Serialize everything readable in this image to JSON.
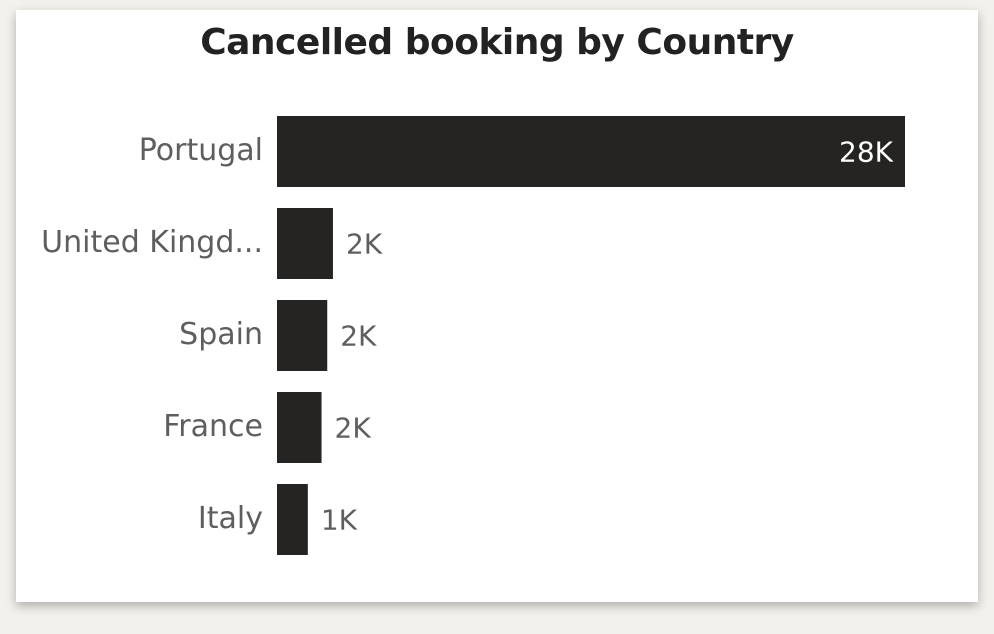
{
  "chart_data": {
    "type": "bar",
    "orientation": "horizontal",
    "title": "Cancelled booking by Country",
    "categories": [
      "Portugal",
      "United Kingd...",
      "Spain",
      "France",
      "Italy"
    ],
    "values": [
      27500,
      2450,
      2200,
      1950,
      1350
    ],
    "data_labels": [
      "28K",
      "2K",
      "2K",
      "2K",
      "1K"
    ],
    "xlabel": "",
    "ylabel": "",
    "xlim": [
      0,
      27500
    ],
    "grid": false,
    "legend": "none",
    "bar_color": "#252423",
    "label_inside_color": "#ffffff",
    "label_outside_color": "#605e5c"
  }
}
